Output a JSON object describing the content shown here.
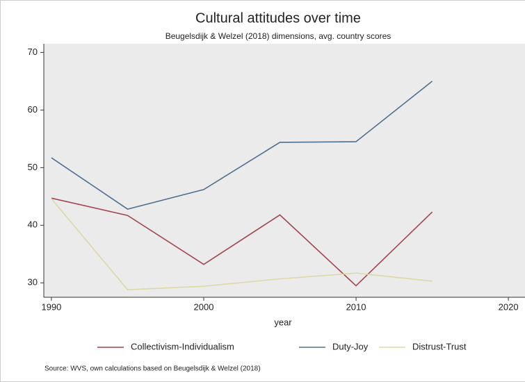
{
  "chart_data": {
    "type": "line",
    "title": "Cultural attitudes over time",
    "subtitle": "Beugelsdijk & Welzel (2018) dimensions, avg. country scores",
    "x_label": "year",
    "note": "Source: WVS, own calculations based on Beugelsdijk & Welzel (2018)",
    "x": [
      1990,
      1995,
      2000,
      2005,
      2010,
      2015
    ],
    "series": [
      {
        "name": "Collectivism-Individualism",
        "color": "#a3444e",
        "values": [
          44.7,
          41.7,
          33.2,
          41.8,
          29.5,
          42.3
        ]
      },
      {
        "name": "Duty-Joy",
        "color": "#4f6f8e",
        "values": [
          51.7,
          42.8,
          46.2,
          54.4,
          54.5,
          65.0
        ]
      },
      {
        "name": "Distrust-Trust",
        "color": "#ddd8a6",
        "values": [
          44.6,
          28.8,
          29.4,
          30.7,
          31.7,
          30.3
        ]
      }
    ],
    "xlim": [
      1989.5,
      2021
    ],
    "ylim": [
      27.5,
      71.5
    ],
    "xticks": [
      1990,
      2000,
      2010,
      2020
    ],
    "yticks": [
      30,
      40,
      50,
      60,
      70
    ],
    "legend": "bottom"
  }
}
